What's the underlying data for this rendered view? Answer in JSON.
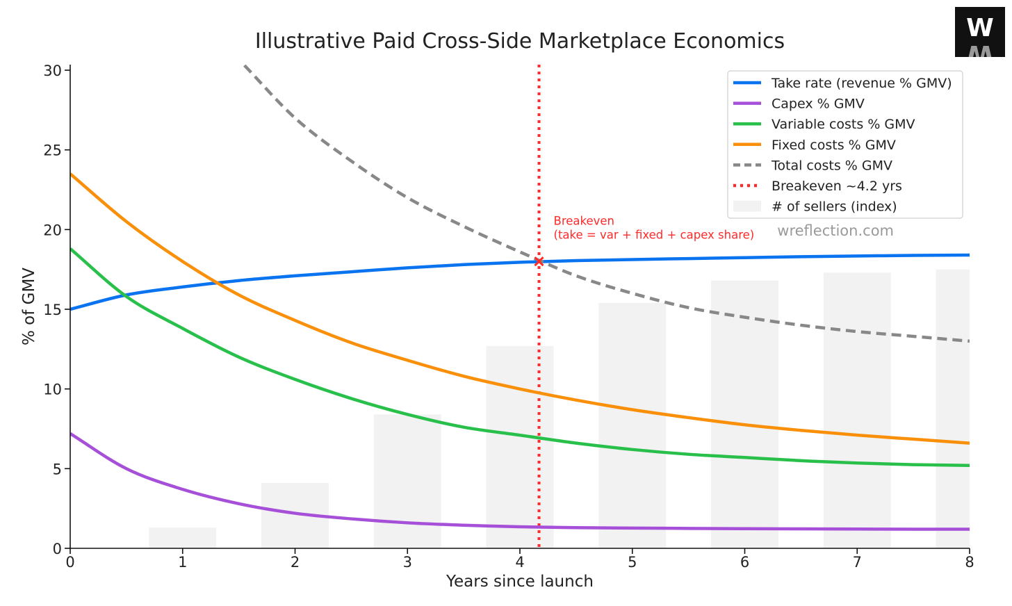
{
  "chart_data": {
    "type": "line",
    "title": "Illustrative Paid Cross-Side Marketplace Economics",
    "xlabel": "Years since launch",
    "ylabel": "% of GMV",
    "xlim": [
      0,
      8
    ],
    "ylim": [
      0,
      30
    ],
    "x_ticks": [
      "0",
      "1",
      "2",
      "3",
      "4",
      "5",
      "6",
      "7",
      "8"
    ],
    "y_ticks": [
      "0",
      "5",
      "10",
      "15",
      "20",
      "25",
      "30"
    ],
    "grid": false,
    "legend_position": "top-right",
    "x": [
      0,
      0.5,
      1,
      1.5,
      2,
      2.5,
      3,
      3.5,
      4,
      4.5,
      5,
      5.5,
      6,
      6.5,
      7,
      7.5,
      8
    ],
    "series": [
      {
        "name": "Take rate (revenue % GMV)",
        "color": "#0a73f0",
        "style": "solid",
        "values": [
          15.0,
          15.9,
          16.4,
          16.8,
          17.1,
          17.35,
          17.6,
          17.8,
          17.95,
          18.05,
          18.12,
          18.18,
          18.24,
          18.3,
          18.34,
          18.38,
          18.4
        ]
      },
      {
        "name": "Capex % GMV",
        "color": "#a64fd9",
        "style": "solid",
        "values": [
          7.2,
          5.0,
          3.7,
          2.8,
          2.2,
          1.85,
          1.6,
          1.45,
          1.35,
          1.3,
          1.27,
          1.25,
          1.23,
          1.22,
          1.21,
          1.2,
          1.2
        ]
      },
      {
        "name": "Variable costs % GMV",
        "color": "#28c04a",
        "style": "solid",
        "values": [
          18.8,
          15.8,
          13.8,
          12.0,
          10.6,
          9.4,
          8.4,
          7.6,
          7.1,
          6.6,
          6.2,
          5.9,
          5.7,
          5.5,
          5.35,
          5.25,
          5.2
        ]
      },
      {
        "name": "Fixed costs % GMV",
        "color": "#fa8f0a",
        "style": "solid",
        "values": [
          23.5,
          20.5,
          18.0,
          15.9,
          14.3,
          12.9,
          11.8,
          10.8,
          10.0,
          9.3,
          8.7,
          8.2,
          7.75,
          7.4,
          7.1,
          6.85,
          6.6
        ]
      },
      {
        "name": "Total costs % GMV",
        "color": "#888888",
        "style": "dashed",
        "x": [
          1.55,
          2,
          2.5,
          3,
          3.5,
          4,
          4.5,
          5,
          5.5,
          6,
          6.5,
          7,
          7.5,
          8
        ],
        "values": [
          30.3,
          27.0,
          24.3,
          22.0,
          20.2,
          18.6,
          17.1,
          16.0,
          15.1,
          14.5,
          14.0,
          13.6,
          13.3,
          13.0
        ]
      },
      {
        "name": "Breakeven ~4.2 yrs",
        "color": "#ff2a2a",
        "style": "dotted",
        "type": "vline",
        "x": 4.17
      },
      {
        "name": "# of sellers (index)",
        "color": "#f2f2f2",
        "style": "bar",
        "x": [
          1,
          2,
          3,
          4,
          5,
          6,
          7,
          8
        ],
        "values": [
          1.3,
          4.1,
          8.4,
          12.7,
          15.4,
          16.8,
          17.3,
          17.5
        ]
      }
    ],
    "breakeven_point": {
      "x": 4.17,
      "y": 18.0
    },
    "annotation": {
      "line1": "Breakeven",
      "line2": "(take = var + fixed + capex share)",
      "x": 4.3,
      "y": 20.3
    },
    "watermark": "wreflection.com",
    "logo_text": "W"
  }
}
